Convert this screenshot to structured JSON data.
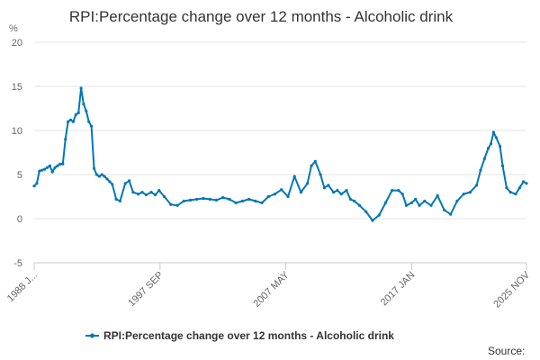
{
  "chart_data": {
    "type": "line",
    "title": "RPI:Percentage change over 12 months - Alcoholic drink",
    "ylabel": "%",
    "xlabel": "",
    "ylim": [
      -5,
      20
    ],
    "yticks": [
      "-5",
      "0",
      "5",
      "10",
      "15",
      "20"
    ],
    "xticks": [
      "1988 J...",
      "1997 SEP",
      "2007 MAY",
      "2017 JAN",
      "2025 NOV"
    ],
    "legend": "top-bottom",
    "source_label": "Source:",
    "series": [
      {
        "name": "RPI:Percentage change over 12 months - Alcoholic drink",
        "color": "#0077b6",
        "x": [
          1988.0,
          1988.2,
          1988.4,
          1988.6,
          1988.8,
          1989.0,
          1989.2,
          1989.4,
          1989.6,
          1989.8,
          1990.0,
          1990.2,
          1990.4,
          1990.6,
          1990.8,
          1991.0,
          1991.2,
          1991.4,
          1991.6,
          1991.8,
          1992.0,
          1992.2,
          1992.4,
          1992.6,
          1992.8,
          1993.0,
          1993.2,
          1993.4,
          1993.6,
          1993.8,
          1994.0,
          1994.3,
          1994.6,
          1995.0,
          1995.3,
          1995.6,
          1996.0,
          1996.3,
          1996.6,
          1997.0,
          1997.3,
          1997.6,
          1998.0,
          1998.5,
          1999.0,
          1999.5,
          2000.0,
          2000.5,
          2001.0,
          2001.5,
          2002.0,
          2002.5,
          2003.0,
          2003.5,
          2004.0,
          2004.5,
          2005.0,
          2005.5,
          2006.0,
          2006.5,
          2007.0,
          2007.5,
          2008.0,
          2008.5,
          2009.0,
          2009.3,
          2009.6,
          2010.0,
          2010.3,
          2010.6,
          2011.0,
          2011.3,
          2011.6,
          2012.0,
          2012.3,
          2012.6,
          2013.0,
          2013.5,
          2014.0,
          2014.5,
          2015.0,
          2015.5,
          2016.0,
          2016.3,
          2016.6,
          2017.0,
          2017.3,
          2017.6,
          2018.0,
          2018.5,
          2019.0,
          2019.5,
          2020.0,
          2020.5,
          2021.0,
          2021.5,
          2022.0,
          2022.3,
          2022.6,
          2022.9,
          2023.1,
          2023.3,
          2023.5,
          2023.8,
          2024.0,
          2024.3,
          2024.6,
          2025.0,
          2025.3,
          2025.6,
          2025.83
        ],
        "values": [
          3.7,
          4.0,
          5.4,
          5.5,
          5.6,
          5.8,
          6.0,
          5.3,
          5.8,
          6.0,
          6.2,
          6.2,
          9.0,
          11.0,
          11.2,
          11.0,
          11.8,
          12.0,
          14.8,
          13.0,
          12.2,
          11.0,
          10.5,
          5.7,
          5.0,
          4.8,
          5.0,
          4.8,
          4.5,
          4.2,
          3.9,
          2.2,
          2.0,
          4.0,
          4.3,
          3.0,
          2.8,
          3.0,
          2.7,
          3.0,
          2.7,
          3.2,
          2.5,
          1.6,
          1.5,
          2.0,
          2.1,
          2.2,
          2.3,
          2.2,
          2.1,
          2.4,
          2.2,
          1.8,
          2.0,
          2.2,
          2.0,
          1.8,
          2.5,
          2.8,
          3.3,
          2.5,
          4.8,
          3.0,
          4.0,
          6.0,
          6.5,
          5.0,
          3.5,
          3.8,
          3.0,
          3.2,
          2.8,
          3.2,
          2.2,
          2.0,
          1.5,
          0.8,
          -0.2,
          0.4,
          1.8,
          3.2,
          3.2,
          2.8,
          1.5,
          1.8,
          2.2,
          1.5,
          2.0,
          1.5,
          2.6,
          1.0,
          0.5,
          2.0,
          2.8,
          3.0,
          3.8,
          5.5,
          6.8,
          8.0,
          8.5,
          9.8,
          9.2,
          8.2,
          6.0,
          3.5,
          3.0,
          2.8,
          3.5,
          4.2,
          4.0
        ]
      }
    ]
  }
}
